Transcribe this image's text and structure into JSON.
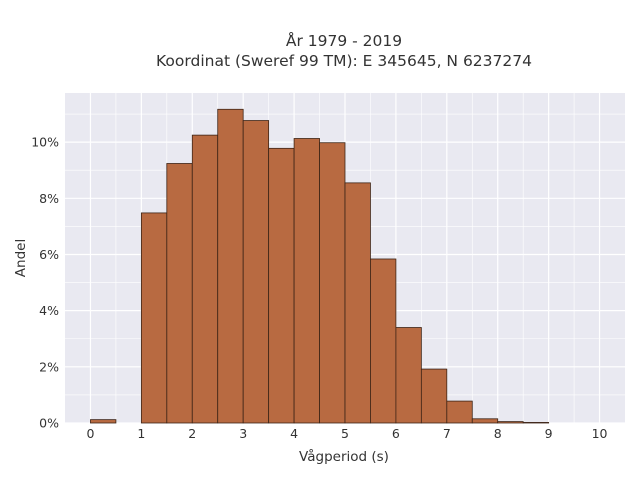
{
  "chart_data": {
    "type": "bar",
    "title_lines": [
      "År 1979 - 2019",
      "Koordinat (Sweref 99 TM): E 345645, N 6237274"
    ],
    "xlabel": "Vågperiod (s)",
    "ylabel": "Andel",
    "bin_width": 0.5,
    "x": [
      0,
      0.5,
      1,
      1.5,
      2,
      2.5,
      3,
      3.5,
      4,
      4.5,
      5,
      5.5,
      6,
      6.5,
      7,
      7.5,
      8,
      8.5,
      9,
      9.5
    ],
    "values": [
      0.0012,
      0,
      0.0748,
      0.0924,
      0.1025,
      0.1117,
      0.1077,
      0.0978,
      0.1013,
      0.0998,
      0.0855,
      0.0584,
      0.034,
      0.0192,
      0.0078,
      0.0015,
      0.0005,
      0.0002,
      0,
      0
    ],
    "xlim": [
      -0.5,
      10.5
    ],
    "ylim": [
      0,
      0.1175
    ],
    "xticks": [
      0,
      1,
      2,
      3,
      4,
      5,
      6,
      7,
      8,
      9,
      10
    ],
    "xtick_labels": [
      "0",
      "1",
      "2",
      "3",
      "4",
      "5",
      "6",
      "7",
      "8",
      "9",
      "10"
    ],
    "yticks": [
      0,
      0.02,
      0.04,
      0.06,
      0.08,
      0.1
    ],
    "ytick_labels": [
      "0%",
      "2%",
      "4%",
      "6%",
      "8%",
      "10%"
    ],
    "grid": true,
    "colors": {
      "bar_fill": "#b86a41",
      "bar_edge": "#3d2416",
      "plot_background": "#e9e9f1",
      "grid": "#ffffff"
    }
  }
}
